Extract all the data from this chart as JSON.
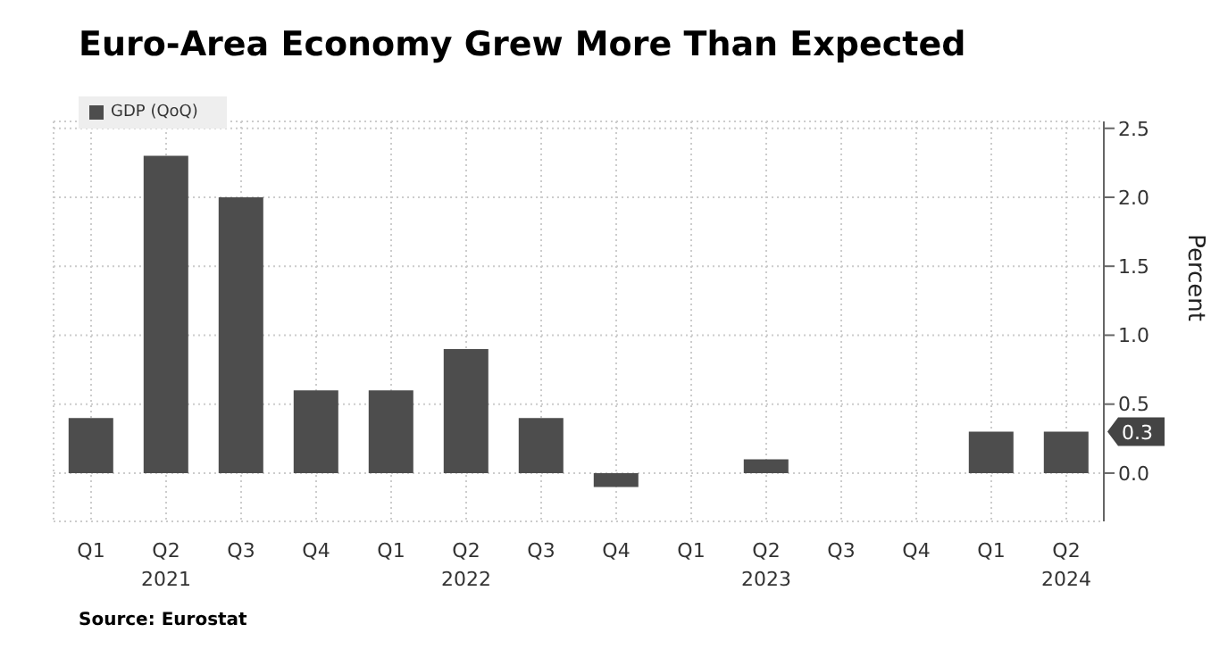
{
  "chart_data": {
    "type": "bar",
    "title": "Euro-Area Economy Grew More Than Expected",
    "categories": [
      "Q1",
      "Q2\n2021",
      "Q3",
      "Q4",
      "Q1",
      "Q2\n2022",
      "Q3",
      "Q4",
      "Q1",
      "Q2\n2023",
      "Q3",
      "Q4",
      "Q1",
      "Q2\n2024"
    ],
    "series": [
      {
        "name": "GDP (QoQ)",
        "color": "#4d4d4d",
        "values": [
          0.4,
          2.3,
          2.0,
          0.6,
          0.6,
          0.9,
          0.4,
          -0.1,
          0.0,
          0.1,
          0.0,
          0.0,
          0.3,
          0.3
        ]
      }
    ],
    "ylabel": "Percent",
    "ylim": [
      -0.35,
      2.55
    ],
    "yticks": [
      {
        "value": 0,
        "label": "0.0"
      },
      0.5,
      {
        "value": 1,
        "label": "1.0"
      },
      1.5,
      {
        "value": 2,
        "label": "2.0"
      },
      2.5
    ],
    "grid": true,
    "legend": "top left",
    "annotations": [
      {
        "text": "0.3",
        "y": 0.3
      },
      "Source: Eurostat"
    ]
  }
}
